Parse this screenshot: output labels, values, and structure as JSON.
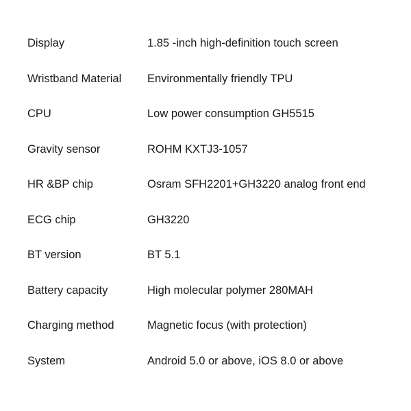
{
  "specs": [
    {
      "label": "Display",
      "value": "1.85 -inch high-definition touch screen"
    },
    {
      "label": "Wristband Material",
      "value": "Environmentally friendly TPU"
    },
    {
      "label": "CPU",
      "value": "Low power consumption GH5515"
    },
    {
      "label": "Gravity sensor",
      "value": "ROHM KXTJ3-1057"
    },
    {
      "label": "HR &BP chip",
      "value": "Osram SFH2201+GH3220 analog front end"
    },
    {
      "label": "ECG chip",
      "value": "GH3220"
    },
    {
      "label": "BT version",
      "value": "BT 5.1"
    },
    {
      "label": "Battery capacity",
      "value": "High molecular polymer 280MAH"
    },
    {
      "label": "Charging method",
      "value": "Magnetic focus (with protection)"
    },
    {
      "label": "System",
      "value": "Android 5.0 or above, iOS 8.0 or above"
    }
  ],
  "style": {
    "background_color": "#ffffff",
    "text_color": "#1a1a1a",
    "font_size": 16.5,
    "label_column_width": 175,
    "row_spacing": 32.5
  }
}
